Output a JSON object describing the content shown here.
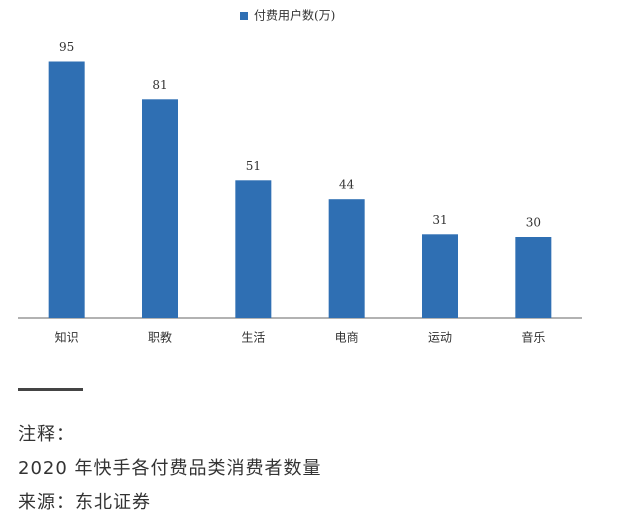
{
  "chart_data": {
    "type": "bar",
    "categories": [
      "知识",
      "职教",
      "生活",
      "电商",
      "运动",
      "音乐"
    ],
    "series": [
      {
        "name": "付费用户数(万)",
        "color": "#2f6fb3",
        "values": [
          95,
          81,
          51,
          44,
          31,
          30
        ]
      }
    ],
    "ylim": [
      0,
      100
    ],
    "legend": "top"
  },
  "notes": {
    "label": "注释：",
    "description": "2020 年快手各付费品类消费者数量",
    "source": "来源：东北证券"
  }
}
